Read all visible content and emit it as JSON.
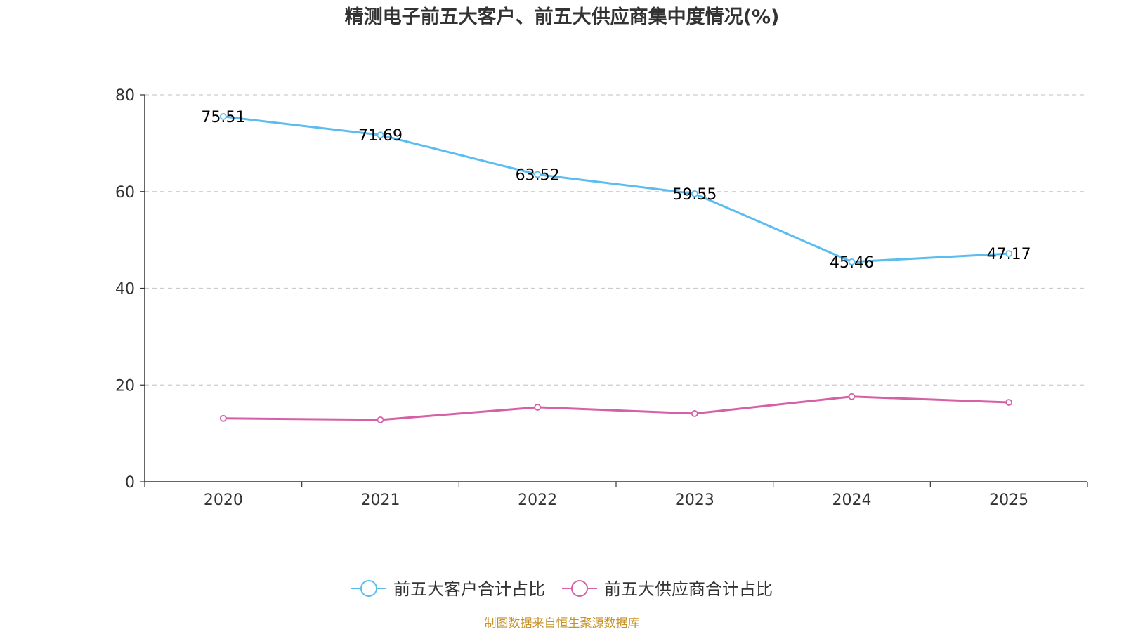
{
  "chart_data": {
    "type": "line",
    "title": "精测电子前五大客户、前五大供应商集中度情况(%)",
    "categories": [
      "2020",
      "2021",
      "2022",
      "2023",
      "2024",
      "2025"
    ],
    "ylim": [
      0,
      80
    ],
    "yticks": [
      0,
      20,
      40,
      60,
      80
    ],
    "xlabel": "",
    "ylabel": "",
    "grid": "horizontal-dashed",
    "legend_position": "bottom-center",
    "series": [
      {
        "name": "前五大客户合计占比",
        "color": "#5bbcef",
        "values": [
          75.51,
          71.69,
          63.52,
          59.55,
          45.46,
          47.17
        ],
        "labels": [
          "75.51",
          "71.69",
          "63.52",
          "59.55",
          "45.46",
          "47.17"
        ],
        "show_labels": true
      },
      {
        "name": "前五大供应商合计占比",
        "color": "#d660a8",
        "values": [
          13.1,
          12.8,
          15.4,
          14.1,
          17.6,
          16.4
        ],
        "show_labels": false
      }
    ]
  },
  "source": {
    "text": "制图数据来自恒生聚源数据库",
    "color": "#c8922a"
  }
}
